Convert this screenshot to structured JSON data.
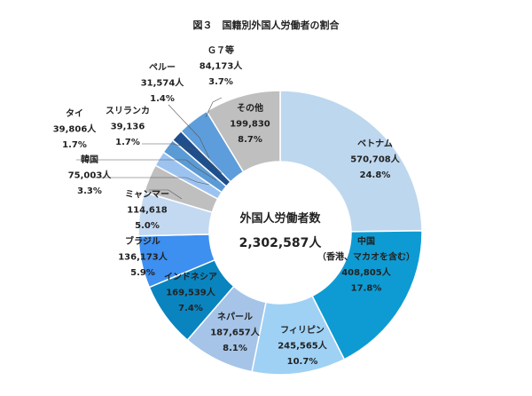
{
  "chart_data": {
    "type": "pie",
    "title": "図３　国籍別外国人労働者の割合",
    "center_label": "外国人労働者数",
    "center_value": "2,302,587人",
    "slices": [
      {
        "lines": [
          "ベトナム",
          "570,708人",
          "24.8%"
        ],
        "value": 570708,
        "percent": 24.8,
        "color": "#bdd7ee"
      },
      {
        "lines": [
          "中国",
          "（香港、マカオを含む）",
          "408,805人",
          "17.8%"
        ],
        "value": 408805,
        "percent": 17.8,
        "color": "#0e9bd3"
      },
      {
        "lines": [
          "フィリピン",
          "245,565人",
          "10.7%"
        ],
        "value": 245565,
        "percent": 10.7,
        "color": "#9fd1f5"
      },
      {
        "lines": [
          "ネパール",
          "187,657人",
          "8.1%"
        ],
        "value": 187657,
        "percent": 8.1,
        "color": "#a5c4e8"
      },
      {
        "lines": [
          "インドネシア",
          "169,539人",
          "7.4%"
        ],
        "value": 169539,
        "percent": 7.4,
        "color": "#0a84bf"
      },
      {
        "lines": [
          "ブラジル",
          "136,173人",
          "5.9%"
        ],
        "value": 136173,
        "percent": 5.9,
        "color": "#3d8ff0"
      },
      {
        "lines": [
          "ミャンマー",
          "114,618",
          "5.0%"
        ],
        "value": 114618,
        "percent": 5.0,
        "color": "#c3d9f1"
      },
      {
        "lines": [
          "韓国",
          "75,003人",
          "3.3%"
        ],
        "value": 75003,
        "percent": 3.3,
        "color": "#bfbfbf"
      },
      {
        "lines": [
          "タイ",
          "39,806人",
          "1.7%"
        ],
        "value": 39806,
        "percent": 1.7,
        "color": "#9cc3f0"
      },
      {
        "lines": [
          "スリランカ",
          "39,136",
          "1.7%"
        ],
        "value": 39136,
        "percent": 1.7,
        "color": "#5b9bd5"
      },
      {
        "lines": [
          "ペルー",
          "31,574人",
          "1.4%"
        ],
        "value": 31574,
        "percent": 1.4,
        "color": "#1f4e8c"
      },
      {
        "lines": [
          "Ｇ７等",
          "84,173人",
          "3.7%"
        ],
        "value": 84173,
        "percent": 3.7,
        "color": "#5e9ddb"
      },
      {
        "lines": [
          "その他",
          "199,830",
          "8.7%"
        ],
        "value": 199830,
        "percent": 8.7,
        "color": "#bfbfbf"
      }
    ]
  }
}
